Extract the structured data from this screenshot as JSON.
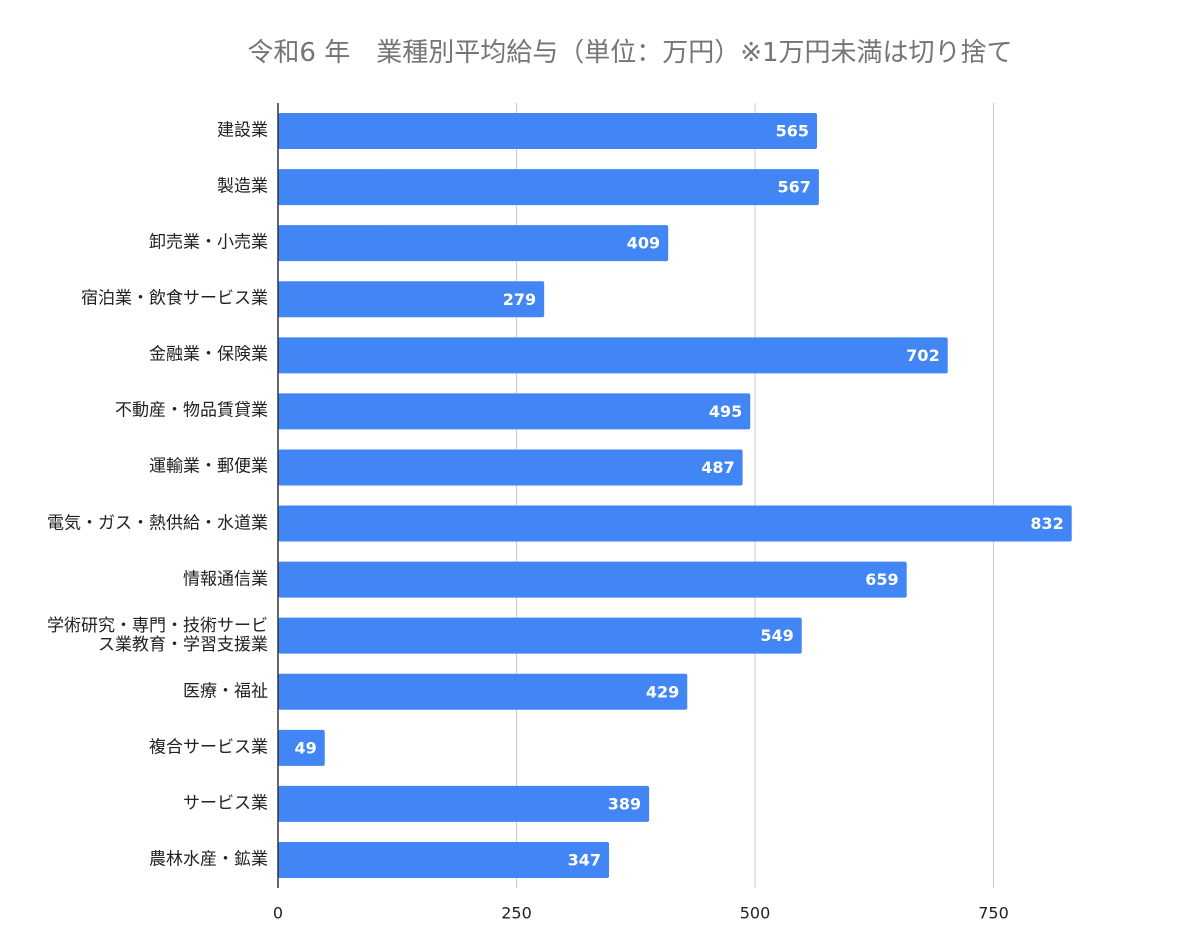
{
  "chart_data": {
    "type": "bar",
    "orientation": "horizontal",
    "title": "令和6 年　業種別平均給与（単位：万円）※1万円未満は切り捨て",
    "categories": [
      "建設業",
      "製造業",
      "卸売業・小売業",
      "宿泊業・飲食サービス業",
      "金融業・保険業",
      "不動産・物品賃貸業",
      "運輸業・郵便業",
      "電気・ガス・熱供給・水道業",
      "情報通信業",
      "学術研究・専門・技術サービス業教育・学習支援業",
      "医療・福祉",
      "複合サービス業",
      "サービス業",
      "農林水産・鉱業"
    ],
    "values": [
      565,
      567,
      409,
      279,
      702,
      495,
      487,
      832,
      659,
      549,
      429,
      49,
      389,
      347
    ],
    "color": "#4285f4",
    "xlim": [
      0,
      850
    ],
    "xticks": [
      0,
      250,
      500,
      750
    ],
    "grid": true
  }
}
